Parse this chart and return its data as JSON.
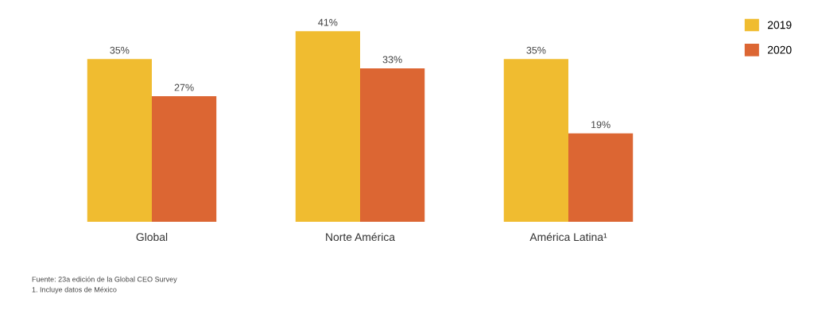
{
  "chart_data": {
    "type": "bar",
    "categories": [
      "Global",
      "Norte América",
      "América Latina¹"
    ],
    "series": [
      {
        "name": "2019",
        "color": "#f0bc30",
        "values": [
          35,
          41,
          35
        ],
        "value_labels": [
          "35%",
          "41%",
          "35%"
        ]
      },
      {
        "name": "2020",
        "color": "#dc6633",
        "values": [
          27,
          33,
          19
        ],
        "value_labels": [
          "27%",
          "33%",
          "19%"
        ]
      }
    ],
    "legend": "top right",
    "grid": false,
    "annotations": [
      "Fuente: 23a edición de la Global CEO Survey",
      "1. Incluye datos de México"
    ]
  }
}
